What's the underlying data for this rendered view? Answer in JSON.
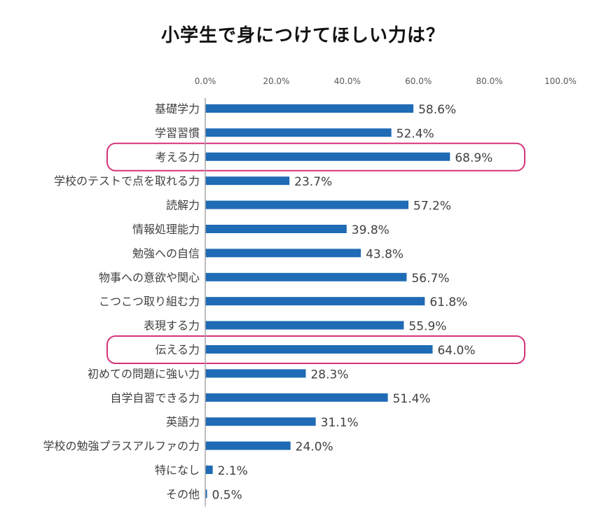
{
  "chart_data": {
    "type": "bar",
    "orientation": "horizontal",
    "title": "小学生で身につけてほしい力は？",
    "xlabel": "",
    "ylabel": "",
    "xlim": [
      0,
      100
    ],
    "x_ticks": [
      "0.0%",
      "20.0%",
      "40.0%",
      "60.0%",
      "80.0%",
      "100.0%"
    ],
    "categories": [
      "基礎学力",
      "学習習慣",
      "考える力",
      "学校のテストで点を取れる力",
      "読解力",
      "情報処理能力",
      "勉強への自信",
      "物事への意欲や関心",
      "こつこつ取り組む力",
      "表現する力",
      "伝える力",
      "初めての問題に強い力",
      "自学自習できる力",
      "英語力",
      "学校の勉強プラスアルファの力",
      "特になし",
      "その他"
    ],
    "values": [
      58.6,
      52.4,
      68.9,
      23.7,
      57.2,
      39.8,
      43.8,
      56.7,
      61.8,
      55.9,
      64.0,
      28.3,
      51.4,
      31.1,
      24.0,
      2.1,
      0.5
    ],
    "value_labels": [
      "58.6%",
      "52.4%",
      "68.9%",
      "23.7%",
      "57.2%",
      "39.8%",
      "43.8%",
      "56.7%",
      "61.8%",
      "55.9%",
      "64.0%",
      "28.3%",
      "51.4%",
      "31.1%",
      "24.0%",
      "2.1%",
      "0.5%"
    ],
    "highlighted": [
      "考える力",
      "伝える力"
    ],
    "grid": false,
    "legend": "none"
  },
  "colors": {
    "bar": "#1f6bb5",
    "highlight": "#d6337a",
    "axis": "#a6a6a6"
  }
}
